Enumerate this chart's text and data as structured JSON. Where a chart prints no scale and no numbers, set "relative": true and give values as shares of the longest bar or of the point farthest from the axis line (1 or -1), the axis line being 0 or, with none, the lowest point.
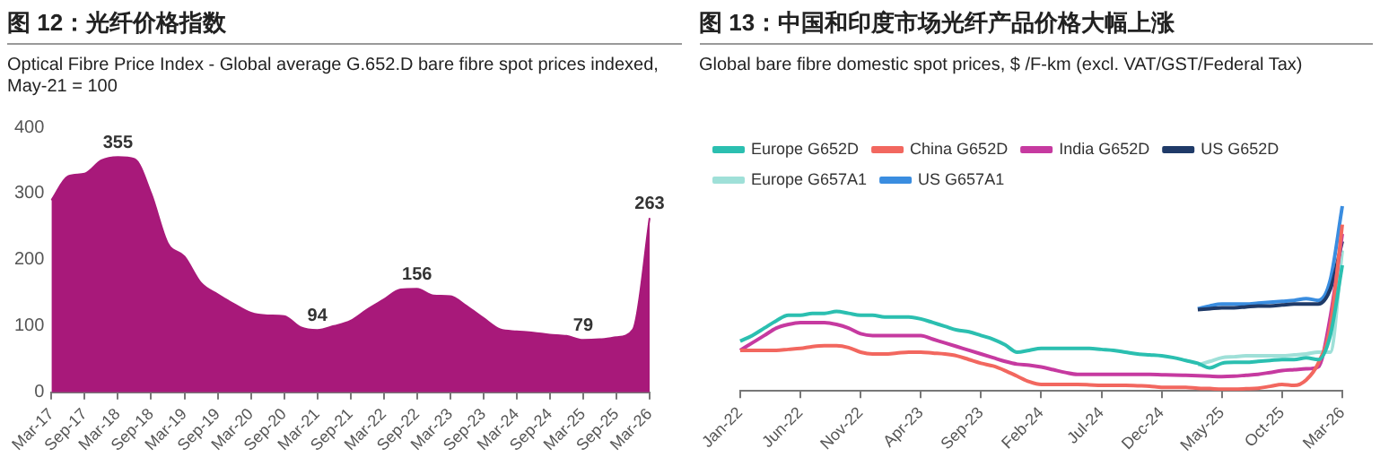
{
  "chart_data": [
    {
      "type": "area",
      "title": "图 12：光纤价格指数",
      "subtitle": "Optical Fibre Price Index - Global average G.652.D bare fibre spot prices indexed, May-21 = 100",
      "categories": [
        "Mar-17",
        null,
        "Sep-17",
        null,
        "Mar-18",
        null,
        "Sep-18",
        null,
        "Mar-19",
        null,
        "Sep-19",
        null,
        "Mar-20",
        null,
        "Sep-20",
        null,
        "Mar-21",
        null,
        "Sep-21",
        null,
        "Mar-22",
        null,
        "Sep-22",
        null,
        "Mar-23",
        null,
        "Sep-23",
        null,
        "Mar-24",
        null,
        "Sep-24",
        null,
        "Mar-25",
        null,
        "Sep-25",
        null,
        "Mar-26"
      ],
      "values": [
        290,
        326,
        330,
        350,
        355,
        352,
        300,
        225,
        205,
        165,
        148,
        133,
        120,
        116,
        115,
        98,
        94,
        100,
        108,
        125,
        140,
        155,
        156,
        146,
        145,
        130,
        112,
        95,
        92,
        90,
        87,
        85,
        79,
        80,
        83,
        95,
        263
      ],
      "value_labels": [
        null,
        null,
        null,
        null,
        "355",
        null,
        null,
        null,
        null,
        null,
        null,
        null,
        null,
        null,
        null,
        null,
        "94",
        null,
        null,
        null,
        null,
        null,
        "156",
        null,
        null,
        null,
        null,
        null,
        null,
        null,
        null,
        null,
        "79",
        null,
        null,
        null,
        "263"
      ],
      "color": "#a8197a",
      "ylim": [
        0,
        400
      ],
      "yticks": [
        0,
        100,
        200,
        300,
        400
      ]
    },
    {
      "type": "line",
      "relative": true,
      "title": "图 13：中国和印度市场光纤产品价格大幅上涨",
      "subtitle": "Global bare fibre domestic spot prices, $ /F-km (excl. VAT/GST/Federal Tax)",
      "legend": "top",
      "categories": [
        "Jan-22",
        null,
        null,
        null,
        null,
        "Jun-22",
        null,
        null,
        null,
        null,
        "Nov-22",
        null,
        null,
        null,
        null,
        "Apr-23",
        null,
        null,
        null,
        null,
        "Sep-23",
        null,
        null,
        null,
        null,
        "Feb-24",
        null,
        null,
        null,
        null,
        "Jul-24",
        null,
        null,
        null,
        null,
        "Dec-24",
        null,
        null,
        null,
        null,
        "May-25",
        null,
        null,
        null,
        null,
        "Oct-25",
        null,
        null,
        null,
        null,
        "Mar-26"
      ],
      "series": [
        {
          "name": "Europe G652D",
          "color": "#2bbfb0",
          "values": [
            0.27,
            0.3,
            0.34,
            0.38,
            0.41,
            0.41,
            0.42,
            0.42,
            0.43,
            0.42,
            0.41,
            0.41,
            0.4,
            0.4,
            0.4,
            0.39,
            0.37,
            0.35,
            0.33,
            0.32,
            0.3,
            0.28,
            0.25,
            0.21,
            0.22,
            0.23,
            0.23,
            0.23,
            0.23,
            0.23,
            0.225,
            0.22,
            0.21,
            0.2,
            0.195,
            0.19,
            0.18,
            0.165,
            0.15,
            0.125,
            0.15,
            0.155,
            0.155,
            0.16,
            0.165,
            0.17,
            0.17,
            0.18,
            0.17,
            0.3,
            0.68
          ]
        },
        {
          "name": "China G652D",
          "color": "#f2675f",
          "values": [
            0.22,
            0.22,
            0.22,
            0.22,
            0.225,
            0.23,
            0.24,
            0.245,
            0.245,
            0.235,
            0.21,
            0.2,
            0.2,
            0.205,
            0.21,
            0.21,
            0.205,
            0.2,
            0.19,
            0.17,
            0.15,
            0.135,
            0.11,
            0.08,
            0.05,
            0.035,
            0.035,
            0.035,
            0.035,
            0.033,
            0.03,
            0.03,
            0.03,
            0.028,
            0.026,
            0.02,
            0.02,
            0.02,
            0.015,
            0.013,
            0.01,
            0.01,
            0.012,
            0.015,
            0.025,
            0.035,
            0.03,
            0.06,
            0.15,
            0.35,
            0.9
          ]
        },
        {
          "name": "India G652D",
          "color": "#c63aa0",
          "values": [
            0.22,
            0.26,
            0.3,
            0.34,
            0.36,
            0.37,
            0.37,
            0.37,
            0.36,
            0.34,
            0.31,
            0.3,
            0.3,
            0.3,
            0.3,
            0.3,
            0.28,
            0.26,
            0.24,
            0.22,
            0.2,
            0.18,
            0.16,
            0.145,
            0.14,
            0.13,
            0.115,
            0.1,
            0.09,
            0.09,
            0.09,
            0.09,
            0.09,
            0.09,
            0.09,
            0.088,
            0.086,
            0.085,
            0.083,
            0.08,
            0.078,
            0.08,
            0.085,
            0.09,
            0.1,
            0.11,
            0.115,
            0.12,
            0.13,
            0.4,
            0.85
          ]
        },
        {
          "name": "US G652D",
          "color": "#1f3a68",
          "values": [
            null,
            null,
            null,
            null,
            null,
            null,
            null,
            null,
            null,
            null,
            null,
            null,
            null,
            null,
            null,
            null,
            null,
            null,
            null,
            null,
            null,
            null,
            null,
            null,
            null,
            null,
            null,
            null,
            null,
            null,
            null,
            null,
            null,
            null,
            null,
            null,
            null,
            null,
            0.44,
            0.445,
            0.45,
            0.45,
            0.455,
            0.46,
            0.46,
            0.465,
            0.47,
            0.47,
            0.47,
            0.55,
            0.81
          ]
        },
        {
          "name": "Europe G657A1",
          "color": "#9fe0d8",
          "values": [
            null,
            null,
            null,
            null,
            null,
            null,
            null,
            null,
            null,
            null,
            null,
            null,
            null,
            null,
            null,
            null,
            null,
            null,
            null,
            null,
            null,
            null,
            null,
            null,
            null,
            null,
            null,
            null,
            null,
            null,
            null,
            null,
            null,
            null,
            null,
            null,
            null,
            null,
            0.14,
            0.16,
            0.18,
            0.185,
            0.19,
            0.19,
            0.19,
            0.19,
            0.195,
            0.2,
            0.21,
            0.21,
            0.76
          ]
        },
        {
          "name": "US G657A1",
          "color": "#3a8de0",
          "values": [
            null,
            null,
            null,
            null,
            null,
            null,
            null,
            null,
            null,
            null,
            null,
            null,
            null,
            null,
            null,
            null,
            null,
            null,
            null,
            null,
            null,
            null,
            null,
            null,
            null,
            null,
            null,
            null,
            null,
            null,
            null,
            null,
            null,
            null,
            null,
            null,
            null,
            null,
            0.445,
            0.46,
            0.47,
            0.47,
            0.47,
            0.475,
            0.48,
            0.485,
            0.49,
            0.5,
            0.49,
            0.6,
            1
          ]
        }
      ]
    }
  ]
}
